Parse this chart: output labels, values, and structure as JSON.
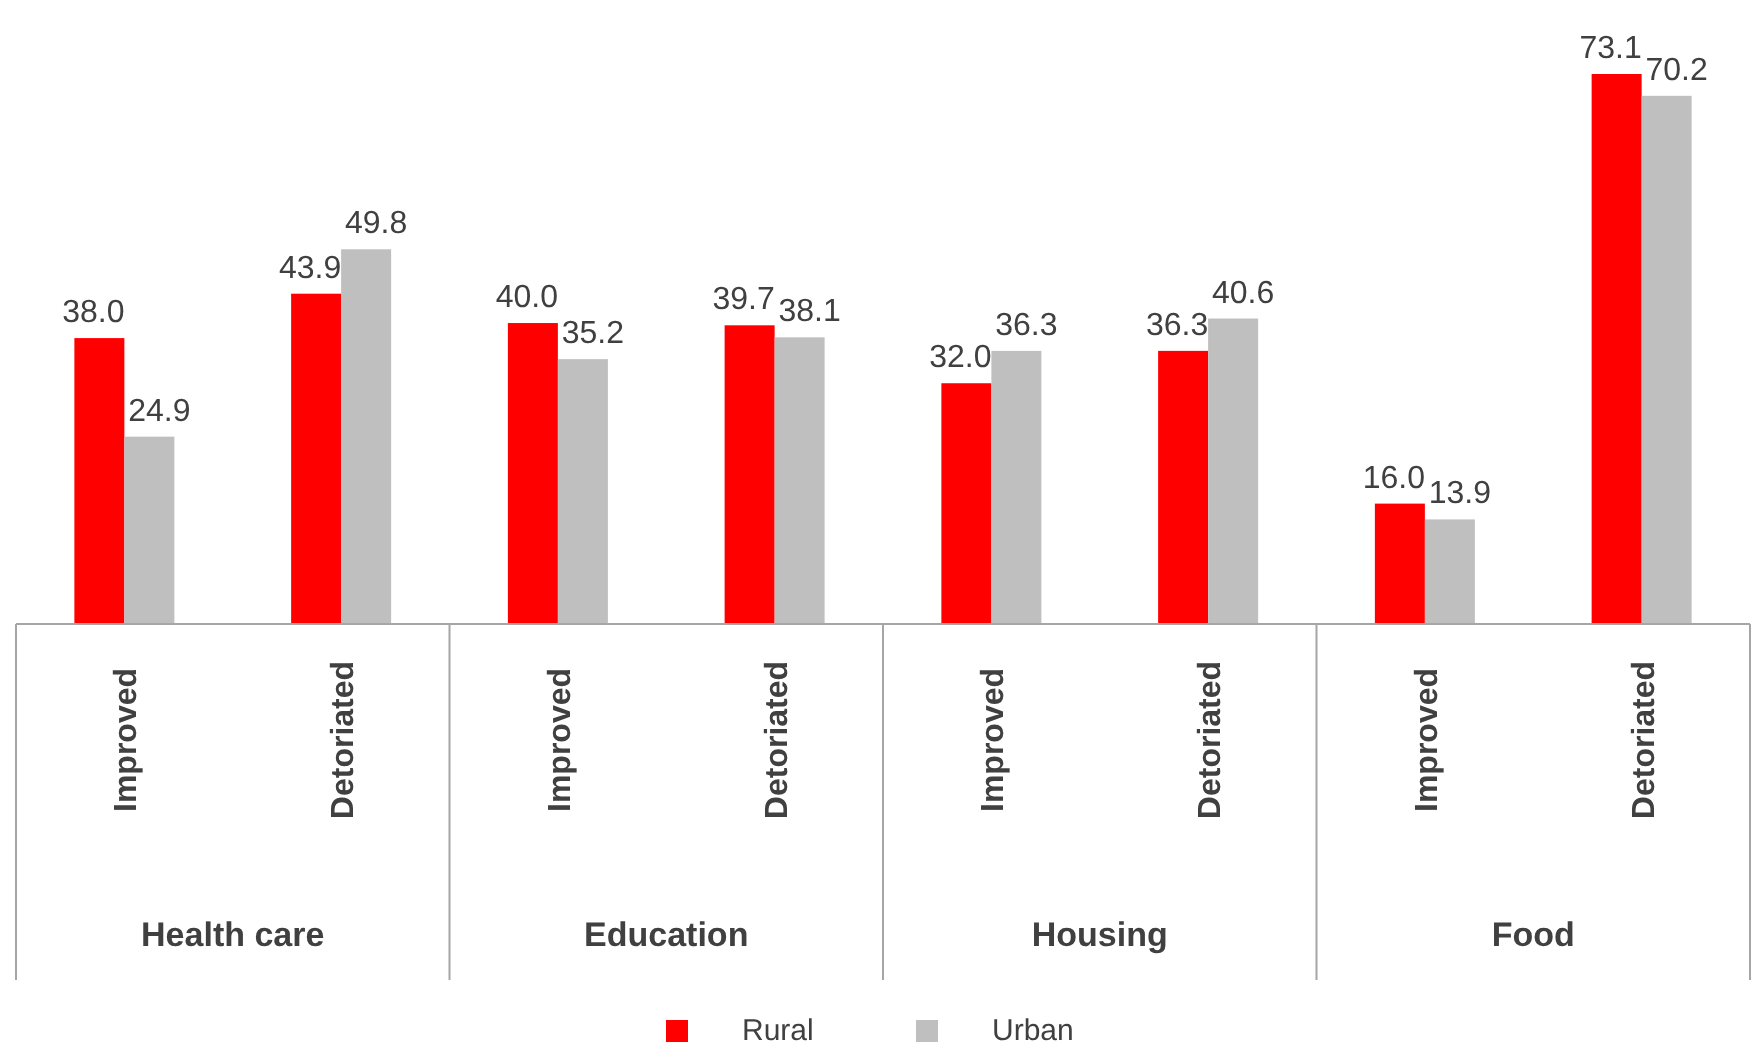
{
  "chart_data": {
    "type": "bar",
    "categories": [
      "Improved",
      "Detoriated",
      "Improved",
      "Detoriated",
      "Improved",
      "Detoriated",
      "Improved",
      "Detoriated"
    ],
    "series": [
      {
        "name": "Rural",
        "color": "#ff0000",
        "values": [
          38.0,
          43.9,
          40.0,
          39.7,
          32.0,
          36.3,
          16.0,
          73.1
        ],
        "value_labels": [
          "38.0",
          "43.9",
          "40.0",
          "39.7",
          "32.0",
          "36.3",
          "16.0",
          "73.1"
        ]
      },
      {
        "name": "Urban",
        "color": "#bfbfbf",
        "values": [
          24.9,
          49.8,
          35.2,
          38.1,
          36.3,
          40.6,
          13.9,
          70.2
        ],
        "value_labels": [
          "24.9",
          "49.8",
          "35.2",
          "38.1",
          "36.3",
          "40.6",
          "13.9",
          "70.2"
        ]
      }
    ],
    "annotations": [
      "Health care",
      "Education",
      "Housing",
      "Food"
    ],
    "legend": "bottom",
    "grid": false
  }
}
